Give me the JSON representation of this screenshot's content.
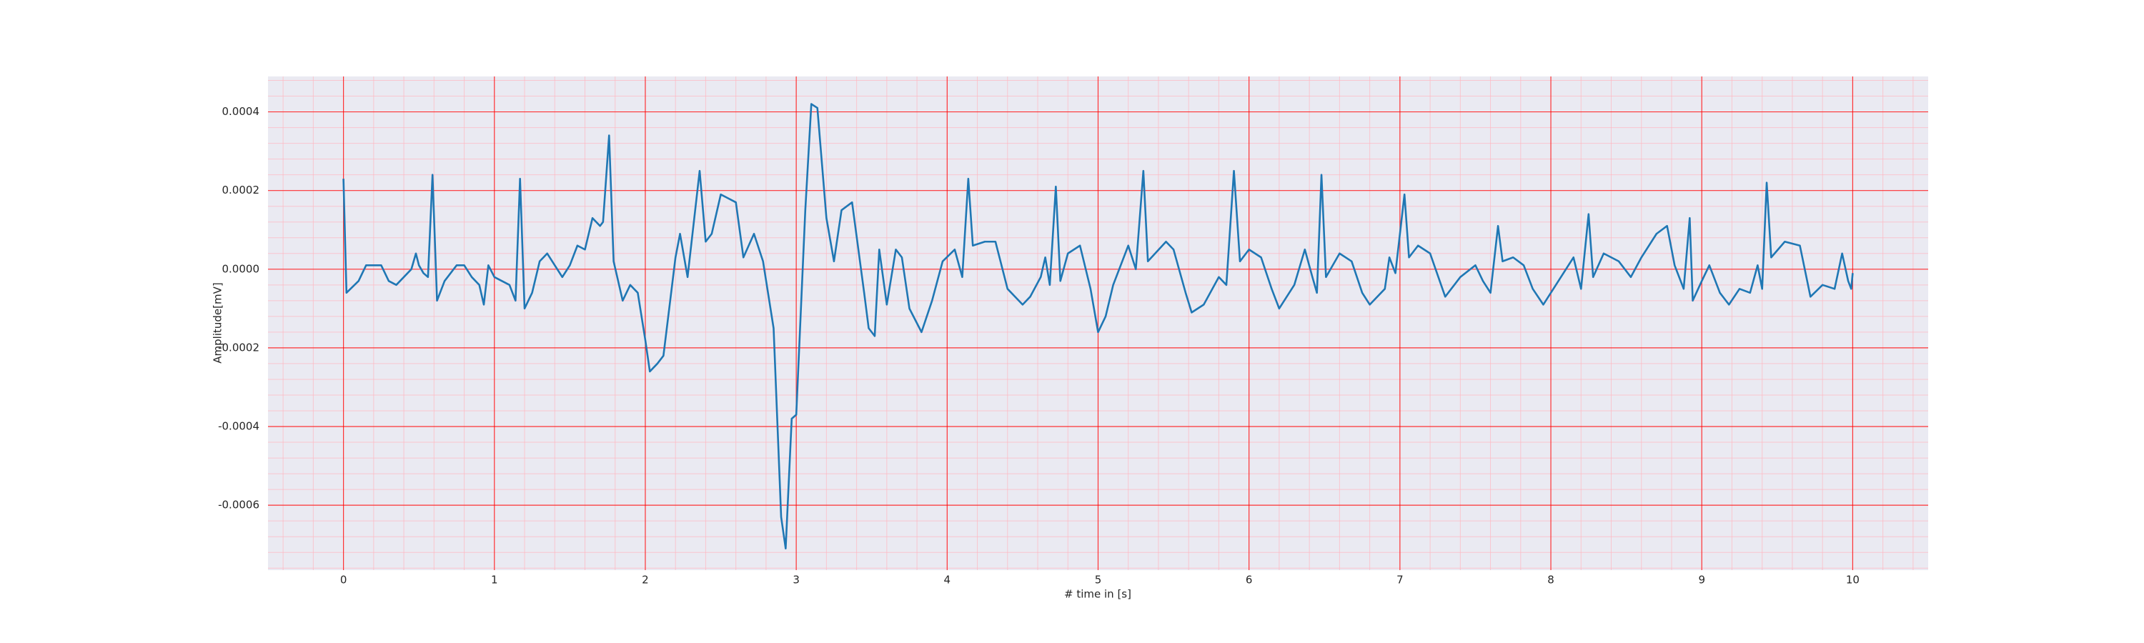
{
  "chart_data": {
    "type": "line",
    "xlabel": "# time in [s]",
    "ylabel": "Amplitude[mV]",
    "xlim": [
      -0.5,
      10.5
    ],
    "ylim": [
      -0.000765,
      0.00049
    ],
    "xticks": [
      0,
      1,
      2,
      3,
      4,
      5,
      6,
      7,
      8,
      9,
      10
    ],
    "yticks": [
      -0.0006,
      -0.0004,
      -0.0002,
      {
        "value": 0,
        "label": "0.0000"
      },
      0.0002,
      0.0004
    ],
    "grid": true,
    "minor_grid": true,
    "background": "#eaeaf2",
    "grid_color": "#ff0000",
    "minor_grid_color": "#ffb6c1",
    "x": [
      0,
      0.02,
      0.1,
      0.15,
      0.25,
      0.3,
      0.35,
      0.4,
      0.45,
      0.48,
      0.5,
      0.53,
      0.56,
      0.59,
      0.62,
      0.67,
      0.75,
      0.8,
      0.85,
      0.9,
      0.93,
      0.96,
      1.0,
      1.05,
      1.1,
      1.14,
      1.17,
      1.2,
      1.25,
      1.3,
      1.35,
      1.4,
      1.45,
      1.5,
      1.55,
      1.6,
      1.65,
      1.7,
      1.72,
      1.76,
      1.79,
      1.85,
      1.9,
      1.95,
      2.0,
      2.03,
      2.08,
      2.12,
      2.2,
      2.23,
      2.28,
      2.36,
      2.4,
      2.44,
      2.5,
      2.6,
      2.65,
      2.72,
      2.78,
      2.85,
      2.9,
      2.93,
      2.97,
      3.0,
      3.06,
      3.1,
      3.14,
      3.2,
      3.25,
      3.3,
      3.37,
      3.45,
      3.48,
      3.52,
      3.55,
      3.6,
      3.66,
      3.7,
      3.75,
      3.83,
      3.9,
      3.97,
      4.05,
      4.1,
      4.14,
      4.17,
      4.25,
      4.32,
      4.4,
      4.5,
      4.55,
      4.62,
      4.65,
      4.68,
      4.72,
      4.75,
      4.8,
      4.88,
      4.95,
      5.0,
      5.05,
      5.1,
      5.2,
      5.25,
      5.3,
      5.33,
      5.45,
      5.5,
      5.58,
      5.62,
      5.7,
      5.8,
      5.85,
      5.9,
      5.94,
      6.0,
      6.08,
      6.15,
      6.2,
      6.3,
      6.37,
      6.42,
      6.45,
      6.48,
      6.51,
      6.6,
      6.68,
      6.75,
      6.8,
      6.9,
      6.93,
      6.97,
      7.03,
      7.06,
      7.12,
      7.2,
      7.3,
      7.4,
      7.5,
      7.55,
      7.6,
      7.65,
      7.68,
      7.75,
      7.82,
      7.88,
      7.95,
      8.05,
      8.15,
      8.2,
      8.25,
      8.28,
      8.35,
      8.45,
      8.53,
      8.6,
      8.7,
      8.77,
      8.82,
      8.88,
      8.92,
      8.94,
      9.0,
      9.05,
      9.12,
      9.18,
      9.25,
      9.32,
      9.37,
      9.4,
      9.43,
      9.46,
      9.55,
      9.65,
      9.72,
      9.8,
      9.88,
      9.93,
      9.97,
      9.99,
      10.0
    ],
    "series": [
      {
        "color": "#1f77b4",
        "values": [
          0.00023,
          -6e-05,
          -3e-05,
          1e-05,
          1e-05,
          -3e-05,
          -4e-05,
          -2e-05,
          0,
          4e-05,
          1e-05,
          -1e-05,
          -2e-05,
          0.00024,
          -8e-05,
          -3e-05,
          1e-05,
          1e-05,
          -2e-05,
          -4e-05,
          -9e-05,
          1e-05,
          -2e-05,
          -3e-05,
          -4e-05,
          -8e-05,
          0.00023,
          -0.0001,
          -6e-05,
          2e-05,
          4e-05,
          1e-05,
          -2e-05,
          1e-05,
          6e-05,
          5e-05,
          0.00013,
          0.00011,
          0.00012,
          0.00034,
          2e-05,
          -8e-05,
          -4e-05,
          -6e-05,
          -0.00018,
          -0.00026,
          -0.00024,
          -0.00022,
          3e-05,
          9e-05,
          -2e-05,
          0.00025,
          7e-05,
          9e-05,
          0.00019,
          0.00017,
          3e-05,
          9e-05,
          2e-05,
          -0.00015,
          -0.00063,
          -0.00071,
          -0.00038,
          -0.00037,
          0.00015,
          0.00042,
          0.00041,
          0.00013,
          2e-05,
          0.00015,
          0.00017,
          -6e-05,
          -0.00015,
          -0.00017,
          5e-05,
          -9e-05,
          5e-05,
          3e-05,
          -0.0001,
          -0.00016,
          -8e-05,
          2e-05,
          5e-05,
          -2e-05,
          0.00023,
          6e-05,
          7e-05,
          7e-05,
          -5e-05,
          -9e-05,
          -7e-05,
          -2e-05,
          3e-05,
          -4e-05,
          0.00021,
          -3e-05,
          4e-05,
          6e-05,
          -5e-05,
          -0.00016,
          -0.00012,
          -4e-05,
          6e-05,
          0,
          0.00025,
          2e-05,
          7e-05,
          5e-05,
          -6e-05,
          -0.00011,
          -9e-05,
          -2e-05,
          -4e-05,
          0.00025,
          2e-05,
          5e-05,
          3e-05,
          -5e-05,
          -0.0001,
          -4e-05,
          5e-05,
          -2e-05,
          -6e-05,
          0.00024,
          -2e-05,
          4e-05,
          2e-05,
          -6e-05,
          -9e-05,
          -5e-05,
          3e-05,
          -1e-05,
          0.00019,
          3e-05,
          6e-05,
          4e-05,
          -7e-05,
          -2e-05,
          1e-05,
          -3e-05,
          -6e-05,
          0.00011,
          2e-05,
          3e-05,
          1e-05,
          -5e-05,
          -9e-05,
          -3e-05,
          3e-05,
          -5e-05,
          0.00014,
          -2e-05,
          4e-05,
          2e-05,
          -2e-05,
          3e-05,
          9e-05,
          0.00011,
          1e-05,
          -5e-05,
          0.00013,
          -8e-05,
          -3e-05,
          1e-05,
          -6e-05,
          -9e-05,
          -5e-05,
          -6e-05,
          1e-05,
          -5e-05,
          0.00022,
          3e-05,
          7e-05,
          6e-05,
          -7e-05,
          -4e-05,
          -5e-05,
          4e-05,
          -3e-05,
          -5e-05,
          -1e-05
        ]
      }
    ]
  }
}
